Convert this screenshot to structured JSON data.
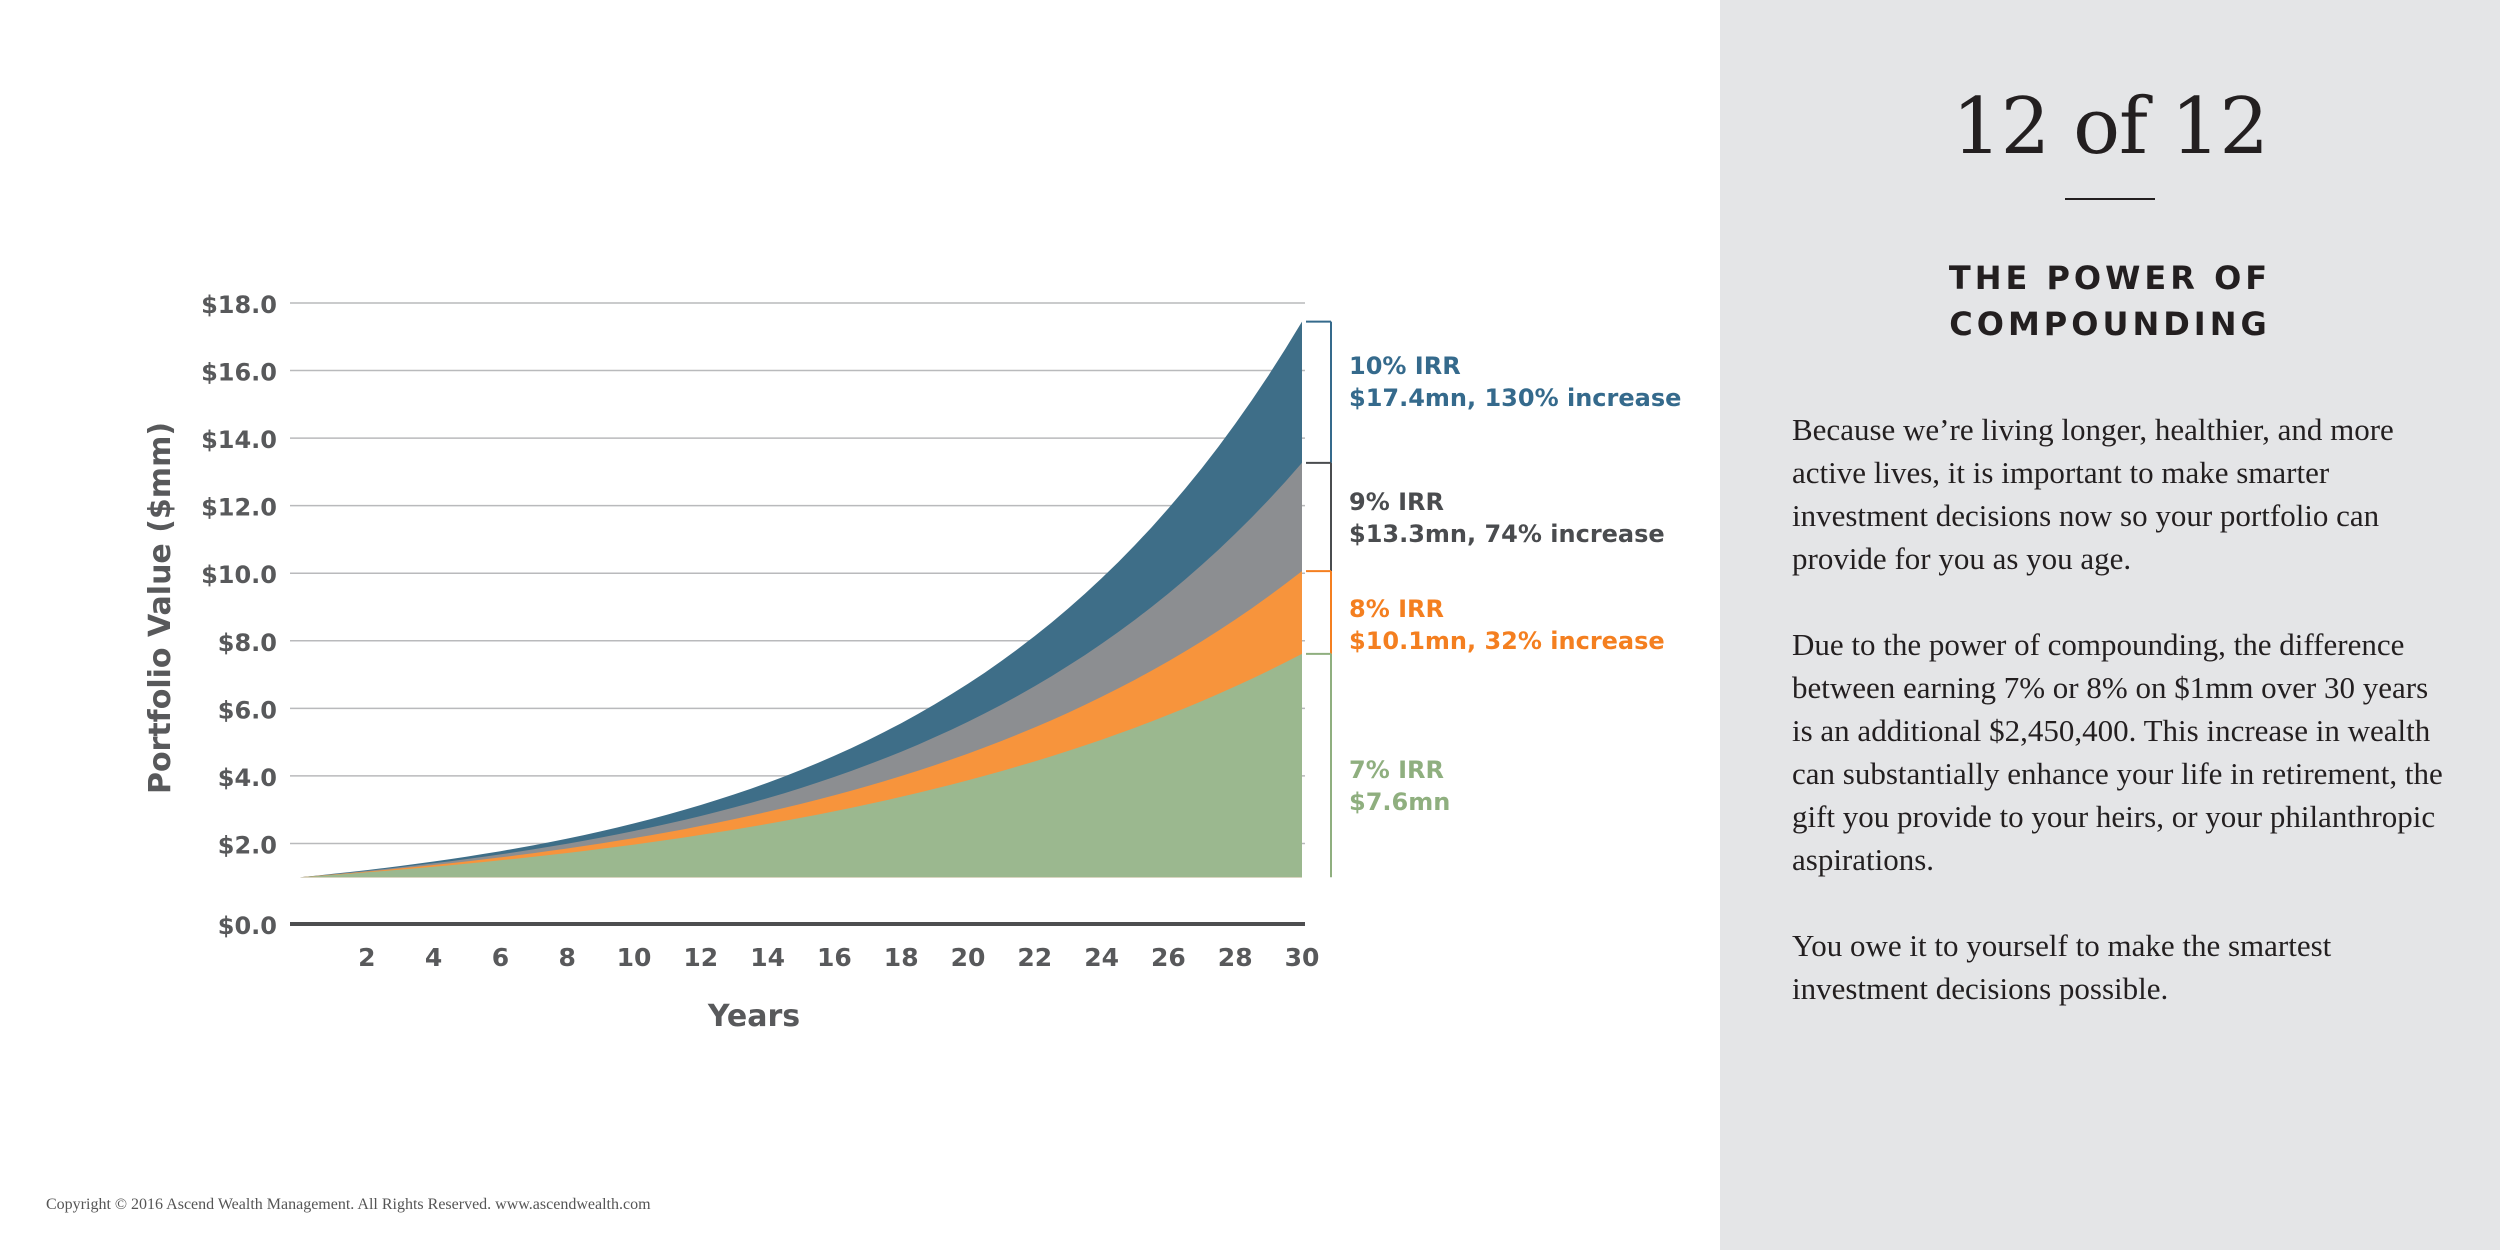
{
  "chart_data": {
    "type": "area",
    "xlabel": "Years",
    "ylabel": "Portfolio Value ($mm)",
    "x_ticks": [
      2,
      4,
      6,
      8,
      10,
      12,
      14,
      16,
      18,
      20,
      22,
      24,
      26,
      28,
      30
    ],
    "y_ticks": [
      {
        "value": 0,
        "label": "$0.0"
      },
      {
        "value": 2,
        "label": "$2.0"
      },
      {
        "value": 4,
        "label": "$4.0"
      },
      {
        "value": 6,
        "label": "$6.0"
      },
      {
        "value": 8,
        "label": "$8.0"
      },
      {
        "value": 10,
        "label": "$10.0"
      },
      {
        "value": 12,
        "label": "$12.0"
      },
      {
        "value": 14,
        "label": "$14.0"
      },
      {
        "value": 16,
        "label": "$16.0"
      },
      {
        "value": 18,
        "label": "$18.0"
      }
    ],
    "xlim": [
      0,
      30
    ],
    "ylim": [
      0,
      18
    ],
    "grid": true,
    "principal": 1,
    "series": [
      {
        "key": "irr10",
        "rate": 0.1,
        "color": "#3e6e88",
        "final_value": 17.4,
        "label_line1": "10% IRR",
        "label_line2": "$17.4mn, 130% increase"
      },
      {
        "key": "irr9",
        "rate": 0.09,
        "color": "#8c8e91",
        "final_value": 13.3,
        "label_line1": "9% IRR",
        "label_line2": "$13.3mn, 74% increase"
      },
      {
        "key": "irr8",
        "rate": 0.08,
        "color": "#f7943c",
        "final_value": 10.1,
        "label_line1": "8% IRR",
        "label_line2": "$10.1mn, 32% increase"
      },
      {
        "key": "irr7",
        "rate": 0.07,
        "color": "#9bb88f",
        "final_value": 7.6,
        "label_line1": "7% IRR",
        "label_line2": "$7.6mn"
      }
    ]
  },
  "label_colors": {
    "irr10": "#356a8c",
    "irr9": "#4a4c4f",
    "irr8": "#f47f20",
    "irr7": "#8faf7f"
  },
  "panel": {
    "counter": "12 of 12",
    "heading_line1": "THE POWER OF",
    "heading_line2": "COMPOUNDING",
    "paragraph1": "Because we’re living longer, healthier, and more active lives, it is important to make smarter investment decisions now so your portfolio can provide for you as you age.",
    "paragraph2": "Due to the power of compounding, the difference between earning 7% or 8% on $1mm over 30 years is an additional $2,450,400. This increase in wealth can substantially enhance your life in retirement, the gift you provide to your heirs, or your philanthropic aspirations.",
    "paragraph3": "You owe it to yourself to make the smartest investment decisions possible."
  },
  "footer": {
    "copyright": "Copyright © 2016 Ascend Wealth Management. All Rights Reserved.  www.ascendwealth.com"
  }
}
